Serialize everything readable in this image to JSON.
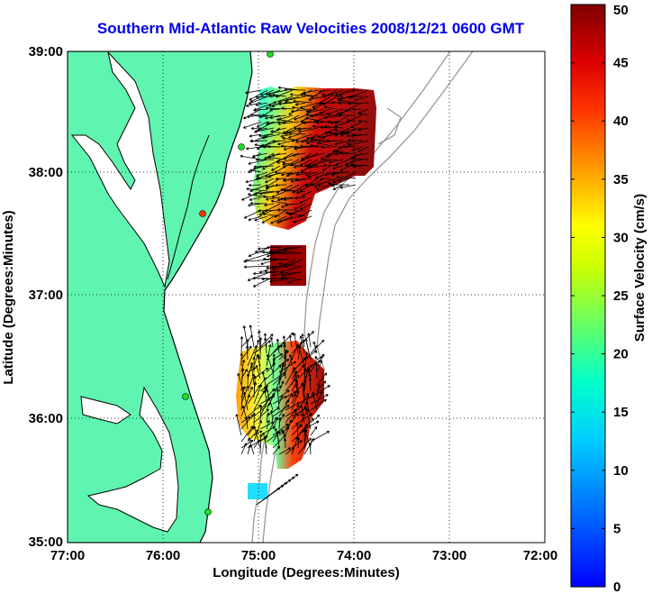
{
  "title": "Southern Mid-Atlantic Raw Velocities 2008/12/21 0600 GMT",
  "map": {
    "xlabel": "Longitude (Degrees:Minutes)",
    "ylabel": "Latitude (Degrees:Minutes)",
    "x_ticks": [
      "77:00",
      "76:00",
      "75:00",
      "74:00",
      "73:00",
      "72:00"
    ],
    "y_ticks": [
      "39:00",
      "38:00",
      "37:00",
      "36:00",
      "35:00"
    ],
    "lon_range": [
      -77,
      -72
    ],
    "lat_range": [
      35,
      39
    ],
    "grid": true,
    "land_color": "#5ff5b0",
    "coast_color": "#000000",
    "bathymetry_color": "#999999",
    "station_color": "#22dd22"
  },
  "colorbar": {
    "label": "Surface Velocity (cm/s)",
    "ticks": [
      "50",
      "45",
      "40",
      "35",
      "30",
      "25",
      "20",
      "15",
      "10",
      "5",
      "0"
    ],
    "range": [
      0,
      50
    ],
    "colormap": "jet"
  }
}
